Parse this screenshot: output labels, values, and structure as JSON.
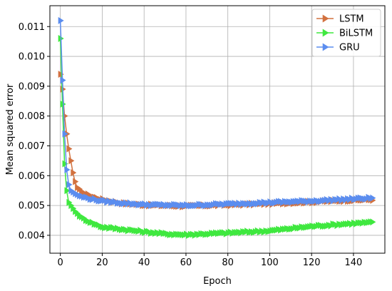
{
  "chart_data": {
    "type": "line",
    "title": "",
    "xlabel": "Epoch",
    "ylabel": "Mean squared error",
    "xlim": [
      -5,
      155
    ],
    "ylim": [
      0.0034,
      0.0117
    ],
    "xticks": [
      0,
      20,
      40,
      60,
      80,
      100,
      120,
      140
    ],
    "yticks": [
      0.004,
      0.005,
      0.006,
      0.007,
      0.008,
      0.009,
      0.01,
      0.011
    ],
    "ytick_labels": [
      "0.004",
      "0.005",
      "0.006",
      "0.007",
      "0.008",
      "0.009",
      "0.010",
      "0.011"
    ],
    "grid": true,
    "legend_position": "top-right",
    "marker": "triangle-right",
    "epochs": 150,
    "series": [
      {
        "name": "LSTM",
        "color": "#d2713f",
        "keypoints": [
          [
            0,
            0.0094
          ],
          [
            1,
            0.0089
          ],
          [
            2,
            0.008
          ],
          [
            3,
            0.0074
          ],
          [
            4,
            0.0069
          ],
          [
            5,
            0.0065
          ],
          [
            6,
            0.0061
          ],
          [
            7,
            0.0058
          ],
          [
            8,
            0.0056
          ],
          [
            10,
            0.00545
          ],
          [
            15,
            0.0053
          ],
          [
            20,
            0.0052
          ],
          [
            30,
            0.00507
          ],
          [
            40,
            0.00502
          ],
          [
            60,
            0.00498
          ],
          [
            80,
            0.00502
          ],
          [
            100,
            0.00506
          ],
          [
            120,
            0.00512
          ],
          [
            140,
            0.00518
          ],
          [
            149,
            0.0052
          ]
        ]
      },
      {
        "name": "BiLSTM",
        "color": "#3fe83f",
        "keypoints": [
          [
            0,
            0.0106
          ],
          [
            1,
            0.0084
          ],
          [
            2,
            0.0064
          ],
          [
            3,
            0.0055
          ],
          [
            4,
            0.0051
          ],
          [
            5,
            0.005
          ],
          [
            7,
            0.0048
          ],
          [
            10,
            0.0046
          ],
          [
            15,
            0.00442
          ],
          [
            20,
            0.00428
          ],
          [
            30,
            0.0042
          ],
          [
            40,
            0.00412
          ],
          [
            50,
            0.00405
          ],
          [
            60,
            0.00402
          ],
          [
            70,
            0.00405
          ],
          [
            80,
            0.00408
          ],
          [
            100,
            0.00415
          ],
          [
            120,
            0.0043
          ],
          [
            140,
            0.0044
          ],
          [
            149,
            0.00443
          ]
        ]
      },
      {
        "name": "GRU",
        "color": "#5b8def",
        "keypoints": [
          [
            0,
            0.0112
          ],
          [
            1,
            0.0092
          ],
          [
            2,
            0.0074
          ],
          [
            3,
            0.0062
          ],
          [
            4,
            0.0057
          ],
          [
            5,
            0.0055
          ],
          [
            7,
            0.0054
          ],
          [
            10,
            0.0053
          ],
          [
            15,
            0.00522
          ],
          [
            20,
            0.00515
          ],
          [
            30,
            0.00508
          ],
          [
            40,
            0.00503
          ],
          [
            60,
            0.005
          ],
          [
            80,
            0.00505
          ],
          [
            100,
            0.0051
          ],
          [
            120,
            0.00515
          ],
          [
            140,
            0.00522
          ],
          [
            149,
            0.00525
          ]
        ]
      }
    ]
  }
}
